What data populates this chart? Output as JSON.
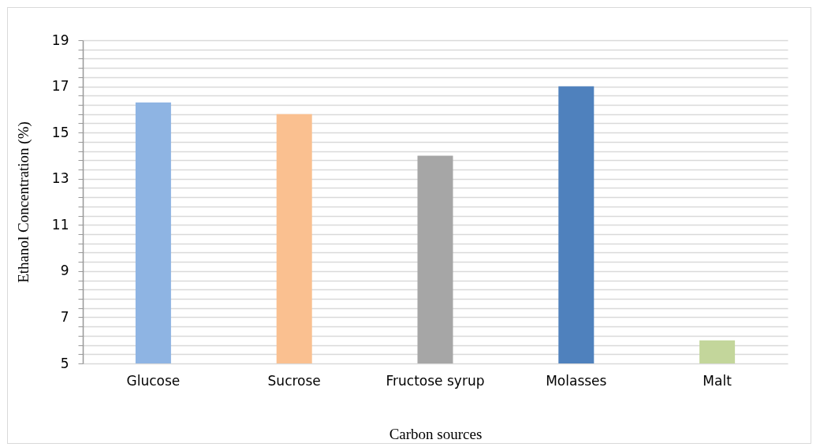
{
  "chart_data": {
    "type": "bar",
    "xlabel": "Carbon sources",
    "ylabel": "Ethanol Concentration (%)",
    "categories": [
      "Glucose",
      "Sucrose",
      "Fructose syrup",
      "Molasses",
      "Malt"
    ],
    "values": [
      16.3,
      15.8,
      14.0,
      17.0,
      6.0
    ],
    "colors": [
      "#8eb4e3",
      "#fac090",
      "#a6a6a6",
      "#4f81bd",
      "#c3d69b"
    ],
    "ylim": [
      5,
      19
    ],
    "yticks": [
      5,
      {
        "value": 5.4,
        "label": null
      },
      {
        "value": 5.8,
        "label": null
      },
      {
        "value": 6.2,
        "label": null
      },
      {
        "value": 6.6,
        "label": null
      },
      7,
      {
        "value": 7.4,
        "label": null
      },
      {
        "value": 7.8,
        "label": null
      },
      {
        "value": 8.2,
        "label": null
      },
      {
        "value": 8.6,
        "label": null
      },
      9,
      {
        "value": 9.4,
        "label": null
      },
      {
        "value": 9.8,
        "label": null
      },
      {
        "value": 10.2,
        "label": null
      },
      {
        "value": 10.6,
        "label": null
      },
      11,
      {
        "value": 11.4,
        "label": null
      },
      {
        "value": 11.8,
        "label": null
      },
      {
        "value": 12.2,
        "label": null
      },
      {
        "value": 12.6,
        "label": null
      },
      13,
      {
        "value": 13.4,
        "label": null
      },
      {
        "value": 13.8,
        "label": null
      },
      {
        "value": 14.2,
        "label": null
      },
      {
        "value": 14.6,
        "label": null
      },
      15,
      {
        "value": 15.4,
        "label": null
      },
      {
        "value": 15.8,
        "label": null
      },
      {
        "value": 16.2,
        "label": null
      },
      {
        "value": 16.6,
        "label": null
      },
      17,
      {
        "value": 17.4,
        "label": null
      },
      {
        "value": 17.8,
        "label": null
      },
      {
        "value": 18.2,
        "label": null
      },
      {
        "value": 18.6,
        "label": null
      },
      19
    ],
    "grid": "y"
  }
}
